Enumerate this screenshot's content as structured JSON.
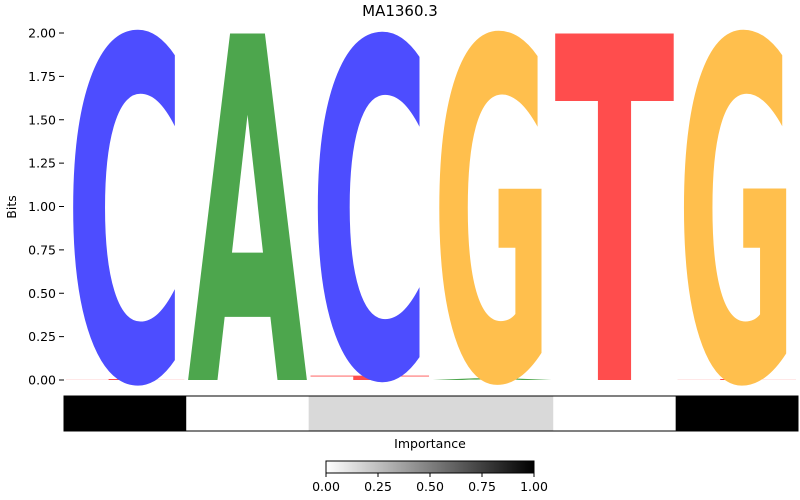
{
  "chart_data": {
    "type": "sequence-logo",
    "title": "MA1360.3",
    "ylabel": "Bits",
    "ylim": [
      0,
      2
    ],
    "yticks": [
      "0.00",
      "0.25",
      "0.50",
      "0.75",
      "1.00",
      "1.25",
      "1.50",
      "1.75",
      "2.00"
    ],
    "colors": {
      "A": "#4da64d",
      "C": "#4d4dff",
      "G": "#ffbf4d",
      "T": "#ff4d4d"
    },
    "positions": [
      {
        "letters": [
          {
            "base": "T",
            "bits": 0.006
          },
          {
            "base": "C",
            "bits": 1.98
          }
        ]
      },
      {
        "letters": [
          {
            "base": "A",
            "bits": 2.0
          }
        ]
      },
      {
        "letters": [
          {
            "base": "T",
            "bits": 0.025
          },
          {
            "base": "C",
            "bits": 1.95
          }
        ]
      },
      {
        "letters": [
          {
            "base": "A",
            "bits": 0.01
          },
          {
            "base": "G",
            "bits": 1.97
          }
        ]
      },
      {
        "letters": [
          {
            "base": "T",
            "bits": 2.0
          }
        ]
      },
      {
        "letters": [
          {
            "base": "T",
            "bits": 0.006
          },
          {
            "base": "G",
            "bits": 1.98
          }
        ]
      }
    ],
    "importance": [
      1.0,
      0.0,
      0.15,
      0.15,
      0.0,
      1.0
    ],
    "importance_label": "Importance",
    "colorbar": {
      "range": [
        0,
        1
      ],
      "ticks": [
        "0.00",
        "0.25",
        "0.50",
        "0.75",
        "1.00"
      ]
    }
  }
}
